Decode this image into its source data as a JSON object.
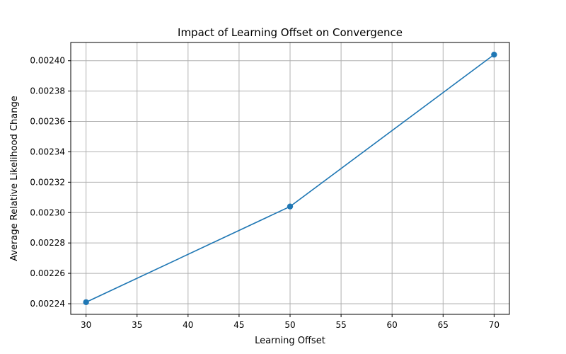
{
  "chart_data": {
    "type": "line",
    "title": "Impact of Learning Offset on Convergence",
    "xlabel": "Learning Offset",
    "ylabel": "Average Relative Likelihood Change",
    "x": [
      30,
      50,
      70
    ],
    "series": [
      {
        "values": [
          0.002241,
          0.002304,
          0.002404
        ],
        "color": "#1f77b4",
        "marker": "circle"
      }
    ],
    "xlim": [
      28.5,
      71.5
    ],
    "ylim": [
      0.002233,
      0.002412
    ],
    "xticks": [
      30,
      35,
      40,
      45,
      50,
      55,
      60,
      65,
      70
    ],
    "yticks": [
      0.00224,
      0.00226,
      0.00228,
      0.0023,
      0.00232,
      0.00234,
      0.00236,
      0.00238,
      0.0024
    ],
    "ytick_labels": [
      "0.00224",
      "0.00226",
      "0.00228",
      "0.00230",
      "0.00232",
      "0.00234",
      "0.00236",
      "0.00238",
      "0.00240"
    ],
    "grid": true
  }
}
